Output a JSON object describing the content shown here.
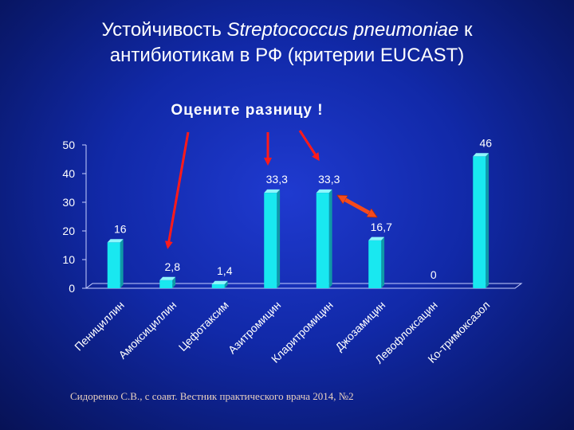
{
  "slide": {
    "title_line1_a": "Устойчивость ",
    "title_line1_italic": "Streptococcus pneumoniae",
    "title_line1_b": " к",
    "title_line2": "антибиотикам в РФ (критерии EUCAST)",
    "subtitle": "Оцените разницу !",
    "citation": "Сидоренко С.В., с соавт. Вестник практического врача 2014, №2"
  },
  "colors": {
    "bar_front": "#19e8f0",
    "bar_side": "#0f9aa6",
    "bar_top": "#8ff6fb",
    "arrow_red": "#ff1a1a",
    "double_arrow": "#f54a1c",
    "axis_text": "#ffffff"
  },
  "chart_data": {
    "type": "bar",
    "categories": [
      "Пенициллин",
      "Амоксициллин",
      "Цефотаксим",
      "Азитромицин",
      "Кларитромицин",
      "Джозамицин",
      "Левофлоксацин",
      "Ко-тримоксазол"
    ],
    "values": [
      16,
      2.8,
      1.4,
      33.3,
      33.3,
      16.7,
      0,
      46
    ],
    "data_labels": [
      "16",
      "2,8",
      "1,4",
      "33,3",
      "33,3",
      "16,7",
      "0",
      "46"
    ],
    "yticks": [
      "0",
      "10",
      "20",
      "30",
      "40",
      "50"
    ],
    "ylim": [
      0,
      50
    ],
    "grid": false,
    "legend": "none",
    "annotations": [
      "red arrow pointing to Амоксициллин",
      "red arrows pointing to Азитромицин and Кларитромицин",
      "double-headed arrow between Кларитромицин and Джозамицин"
    ]
  }
}
